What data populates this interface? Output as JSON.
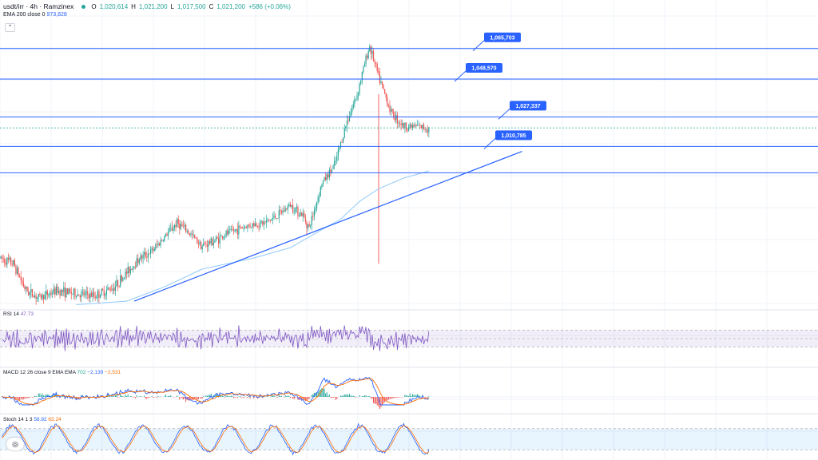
{
  "header": {
    "symbol": "usdt/irr · 4h · Ramzinex",
    "o_label": "O",
    "o_value": "1,020,614",
    "h_label": "H",
    "h_value": "1,021,200",
    "l_label": "L",
    "l_value": "1,017,500",
    "c_label": "C",
    "c_value": "1,021,200",
    "change": "+586 (+0.06%)"
  },
  "ema_indicator": {
    "label": "EMA 200 close 0",
    "value": "973,828"
  },
  "collapse_glyph": "⌃",
  "logo_glyph": "◎",
  "colors": {
    "up": "#26a69a",
    "down": "#ef5350",
    "line": "#2962ff",
    "ema": "#90caf9",
    "rsi": "#7e57c2",
    "macd": "#2962ff",
    "signal": "#ff6d00",
    "stoch_k": "#2962ff",
    "stoch_d": "#ff6d00"
  },
  "rsi_indicator": {
    "label": "RSI 14",
    "value": "47.73"
  },
  "macd_indicator": {
    "label": "MACD 12 26 close 9 EMA EMA",
    "v1": "702",
    "v2": "−2,139",
    "v3": "−2,531"
  },
  "stoch_indicator": {
    "label": "Stoch 14 1 3",
    "k": "58.92",
    "d": "63.24"
  },
  "chart_data": {
    "type": "candlestick",
    "price_min": 920000,
    "price_max": 1075000,
    "levels": [
      {
        "price": 1065703,
        "label": "1,065,703"
      },
      {
        "price": 1048570,
        "label": "1,048,570"
      },
      {
        "price": 1027337,
        "label": "1,027,337"
      },
      {
        "price": 1010785,
        "label": "1,010,785"
      },
      {
        "price": 996000,
        "label": ""
      }
    ],
    "current_price": 1021200,
    "anchors": [
      [
        0,
        948000
      ],
      [
        10,
        945000
      ],
      [
        20,
        930000
      ],
      [
        30,
        926000
      ],
      [
        45,
        930000
      ],
      [
        60,
        928000
      ],
      [
        75,
        927000
      ],
      [
        90,
        932000
      ],
      [
        100,
        940000
      ],
      [
        110,
        948000
      ],
      [
        120,
        952000
      ],
      [
        130,
        960000
      ],
      [
        140,
        968000
      ],
      [
        150,
        962000
      ],
      [
        160,
        955000
      ],
      [
        170,
        958000
      ],
      [
        180,
        962000
      ],
      [
        190,
        965000
      ],
      [
        200,
        967000
      ],
      [
        210,
        968000
      ],
      [
        220,
        972000
      ],
      [
        230,
        978000
      ],
      [
        240,
        972000
      ],
      [
        245,
        965000
      ],
      [
        255,
        990000
      ],
      [
        265,
        1000000
      ],
      [
        275,
        1025000
      ],
      [
        283,
        1040000
      ],
      [
        290,
        1060000
      ],
      [
        293,
        1067000
      ],
      [
        300,
        1050000
      ],
      [
        310,
        1030000
      ],
      [
        320,
        1022000
      ],
      [
        330,
        1022000
      ],
      [
        340,
        1021000
      ]
    ],
    "ema_anchors": [
      [
        60,
        922000
      ],
      [
        100,
        924000
      ],
      [
        130,
        932000
      ],
      [
        160,
        942000
      ],
      [
        200,
        948000
      ],
      [
        230,
        954000
      ],
      [
        250,
        962000
      ],
      [
        270,
        970000
      ],
      [
        285,
        980000
      ],
      [
        300,
        987000
      ],
      [
        320,
        993000
      ],
      [
        340,
        997000
      ]
    ],
    "trendline": {
      "from": [
        106,
        924000
      ],
      "to": [
        414,
        1008000
      ]
    },
    "rsi": {
      "min": 0,
      "max": 100,
      "band": [
        30,
        70
      ],
      "mid": 50,
      "last": 47.73
    },
    "macd": {
      "last": 702,
      "signal": -2139,
      "hist": -2531
    },
    "stoch": {
      "band": [
        20,
        80
      ],
      "k": 58.92,
      "d": 63.24
    }
  }
}
